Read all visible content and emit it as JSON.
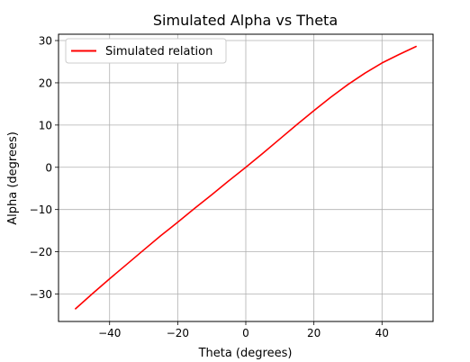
{
  "chart_data": {
    "type": "line",
    "title": "Simulated Alpha vs Theta",
    "xlabel": "Theta (degrees)",
    "ylabel": "Alpha (degrees)",
    "xlim": [
      -55,
      55
    ],
    "ylim": [
      -36.5,
      31.5
    ],
    "xticks": [
      -40,
      -20,
      0,
      20,
      40
    ],
    "xtick_labels": [
      "−40",
      "−20",
      "0",
      "20",
      "40"
    ],
    "yticks": [
      -30,
      -20,
      -10,
      0,
      10,
      20,
      30
    ],
    "ytick_labels": [
      "−30",
      "−20",
      "−10",
      "0",
      "10",
      "20",
      "30"
    ],
    "grid": true,
    "legend_position": "top-left",
    "series": [
      {
        "name": "Simulated relation",
        "color": "#ff0000",
        "x": [
          -50,
          -45,
          -40,
          -35,
          -30,
          -25,
          -20,
          -15,
          -10,
          -5,
          0,
          5,
          10,
          15,
          20,
          25,
          30,
          35,
          40,
          45,
          50
        ],
        "y": [
          -33.5,
          -29.9,
          -26.4,
          -23.0,
          -19.6,
          -16.2,
          -13.0,
          -9.7,
          -6.5,
          -3.2,
          0.0,
          3.3,
          6.7,
          10.1,
          13.4,
          16.6,
          19.6,
          22.3,
          24.7,
          26.7,
          28.6
        ]
      }
    ]
  }
}
